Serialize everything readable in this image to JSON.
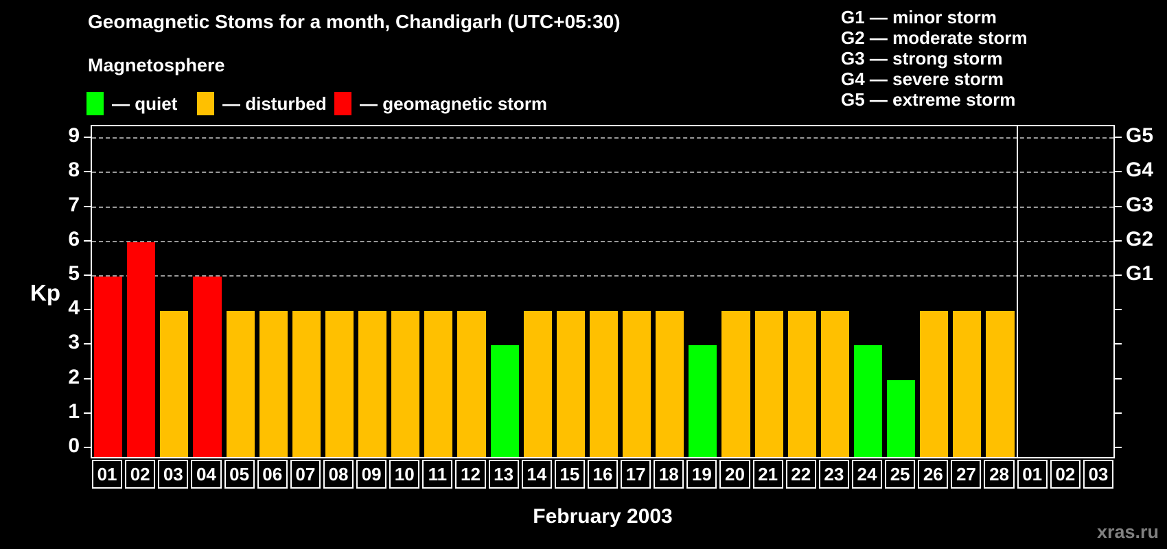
{
  "title": "Geomagnetic Stoms for a month, Chandigarh (UTC+05:30)",
  "watermark": "xras.ru",
  "legend": {
    "heading": "Magnetosphere",
    "items": [
      {
        "key": "quiet",
        "label": "— quiet",
        "color": "#00ff00"
      },
      {
        "key": "disturbed",
        "label": "— disturbed",
        "color": "#ffc000"
      },
      {
        "key": "storm",
        "label": "— geomagnetic storm",
        "color": "#ff0000"
      }
    ]
  },
  "gscale_legend": [
    "G1 — minor storm",
    "G2 — moderate storm",
    "G3 — strong storm",
    "G4 — severe storm",
    "G5 — extreme storm"
  ],
  "chart_data": {
    "type": "bar",
    "title": "Geomagnetic Stoms for a month, Chandigarh (UTC+05:30)",
    "xlabel": "February 2003",
    "ylabel": "Kp",
    "ylim": [
      0,
      9
    ],
    "yticks": [
      0,
      1,
      2,
      3,
      4,
      5,
      6,
      7,
      8,
      9
    ],
    "grid_kp": [
      5,
      6,
      7,
      8,
      9
    ],
    "grid_style": "dashed",
    "legend_position": "top",
    "right_labels": [
      {
        "kp": 9,
        "label": "G5"
      },
      {
        "kp": 8,
        "label": "G4"
      },
      {
        "kp": 7,
        "label": "G3"
      },
      {
        "kp": 6,
        "label": "G2"
      },
      {
        "kp": 5,
        "label": "G1"
      }
    ],
    "categories": [
      "01",
      "02",
      "03",
      "04",
      "05",
      "06",
      "07",
      "08",
      "09",
      "10",
      "11",
      "12",
      "13",
      "14",
      "15",
      "16",
      "17",
      "18",
      "19",
      "20",
      "21",
      "22",
      "23",
      "24",
      "25",
      "26",
      "27",
      "28",
      "01",
      "02",
      "03"
    ],
    "values": [
      5,
      6,
      4,
      5,
      4,
      4,
      4,
      4,
      4,
      4,
      4,
      4,
      3,
      4,
      4,
      4,
      4,
      4,
      3,
      4,
      4,
      4,
      4,
      3,
      2,
      4,
      4,
      4,
      null,
      null,
      null
    ],
    "statuses": [
      "storm",
      "storm",
      "disturbed",
      "storm",
      "disturbed",
      "disturbed",
      "disturbed",
      "disturbed",
      "disturbed",
      "disturbed",
      "disturbed",
      "disturbed",
      "quiet",
      "disturbed",
      "disturbed",
      "disturbed",
      "disturbed",
      "disturbed",
      "quiet",
      "disturbed",
      "disturbed",
      "disturbed",
      "disturbed",
      "quiet",
      "quiet",
      "disturbed",
      "disturbed",
      "disturbed",
      null,
      null,
      null
    ],
    "colors": {
      "quiet": "#00ff00",
      "disturbed": "#ffc000",
      "storm": "#ff0000"
    },
    "separator_after_index": 27
  }
}
